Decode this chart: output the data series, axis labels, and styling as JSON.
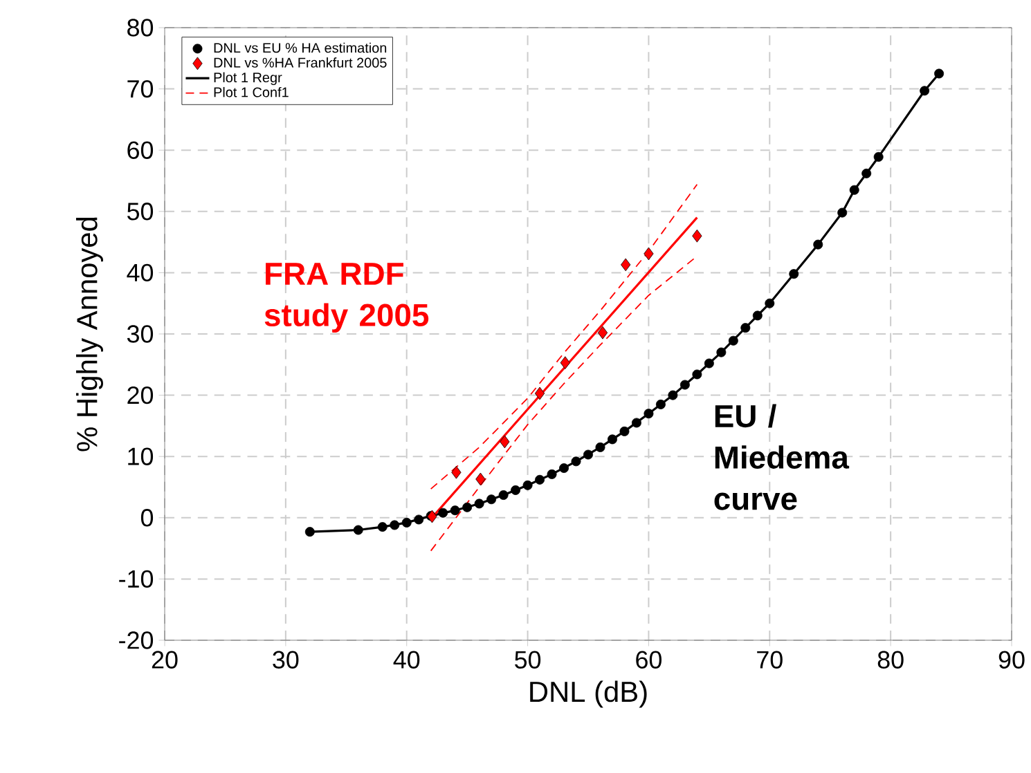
{
  "chart_data": {
    "type": "scatter",
    "xlabel": "DNL (dB)",
    "ylabel": "% Highly Annoyed",
    "xlim": [
      20,
      90
    ],
    "ylim": [
      -20,
      80
    ],
    "xticks": [
      20,
      30,
      40,
      50,
      60,
      70,
      80,
      90
    ],
    "yticks": [
      -20,
      -10,
      0,
      10,
      20,
      30,
      40,
      50,
      60,
      70,
      80
    ],
    "grid": true,
    "legend": "top left",
    "series": [
      {
        "name": "Plot 1 Regr",
        "type": "line",
        "color": "#000000",
        "marker": "none",
        "line_style": "solid",
        "x": [
          32,
          36,
          38,
          40,
          42,
          44,
          46,
          48,
          50,
          52,
          54,
          56,
          58,
          60,
          62,
          64,
          66,
          68,
          70,
          72,
          74,
          76,
          77,
          78,
          79,
          82.8,
          84
        ],
        "values": [
          -2.3,
          -2,
          -1.5,
          -0.8,
          0.3,
          1.2,
          2.3,
          3.7,
          5.3,
          7.1,
          9.2,
          11.5,
          14.1,
          17,
          20,
          23.4,
          27,
          31,
          35,
          39.8,
          44.6,
          49.8,
          53.5,
          56.2,
          58.9,
          69.7,
          72.5
        ]
      },
      {
        "name": "Plot 1 Conf1",
        "type": "line",
        "color": "#ff0000",
        "marker": "none",
        "line_style": "dashed",
        "x": [
          42,
          46,
          50,
          53,
          56,
          60,
          64
        ],
        "values": [
          4.7,
          11.5,
          19.5,
          26.9,
          33.8,
          43.5,
          54.4
        ]
      },
      {
        "type": "line",
        "color": "#ff0000",
        "marker": "none",
        "line_style": "dashed",
        "x": [
          42,
          46,
          50,
          53,
          56,
          60,
          64
        ],
        "values": [
          -5.4,
          5,
          15.2,
          21.9,
          28.2,
          36.3,
          42.7
        ]
      },
      {
        "type": "line",
        "color": "#ff0000",
        "marker": "none",
        "line_style": "solid",
        "x": [
          42,
          64
        ],
        "values": [
          -0.2,
          49
        ]
      },
      {
        "name": "DNL vs EU % HA estimation",
        "color": "#000000",
        "marker": "circle",
        "x": [
          32,
          36,
          38,
          39,
          40,
          41,
          42,
          43,
          44,
          45,
          46,
          47,
          48,
          49,
          50,
          51,
          52,
          53,
          54,
          55,
          56,
          57,
          58,
          59,
          60,
          61,
          62,
          63,
          64,
          65,
          66,
          67,
          68,
          69,
          70,
          72,
          74,
          76,
          77,
          78,
          79,
          82.8,
          84
        ],
        "values": [
          -2.3,
          -2,
          -1.5,
          -1.2,
          -0.8,
          -0.3,
          0.3,
          0.8,
          1.2,
          1.7,
          2.3,
          3,
          3.7,
          4.5,
          5.3,
          6.2,
          7.1,
          8.1,
          9.2,
          10.3,
          11.5,
          12.8,
          14.1,
          15.5,
          17,
          18.5,
          20,
          21.7,
          23.4,
          25.2,
          27,
          28.9,
          31,
          33,
          35,
          39.8,
          44.6,
          49.8,
          53.5,
          56.2,
          58.9,
          69.7,
          72.5
        ]
      },
      {
        "name": "DNL vs %HA Frankfurt 2005",
        "color": "#ff0000",
        "marker": "diamond",
        "x": [
          42.1,
          44.1,
          46.1,
          48.1,
          51,
          53.1,
          56.2,
          58.1,
          60,
          64
        ],
        "values": [
          0.2,
          7.4,
          6.3,
          12.4,
          20.3,
          25.3,
          30.2,
          41.3,
          43.1,
          46
        ]
      }
    ],
    "annotations": [
      "FRA RDF study 2005",
      "EU / Miedema curve"
    ]
  }
}
